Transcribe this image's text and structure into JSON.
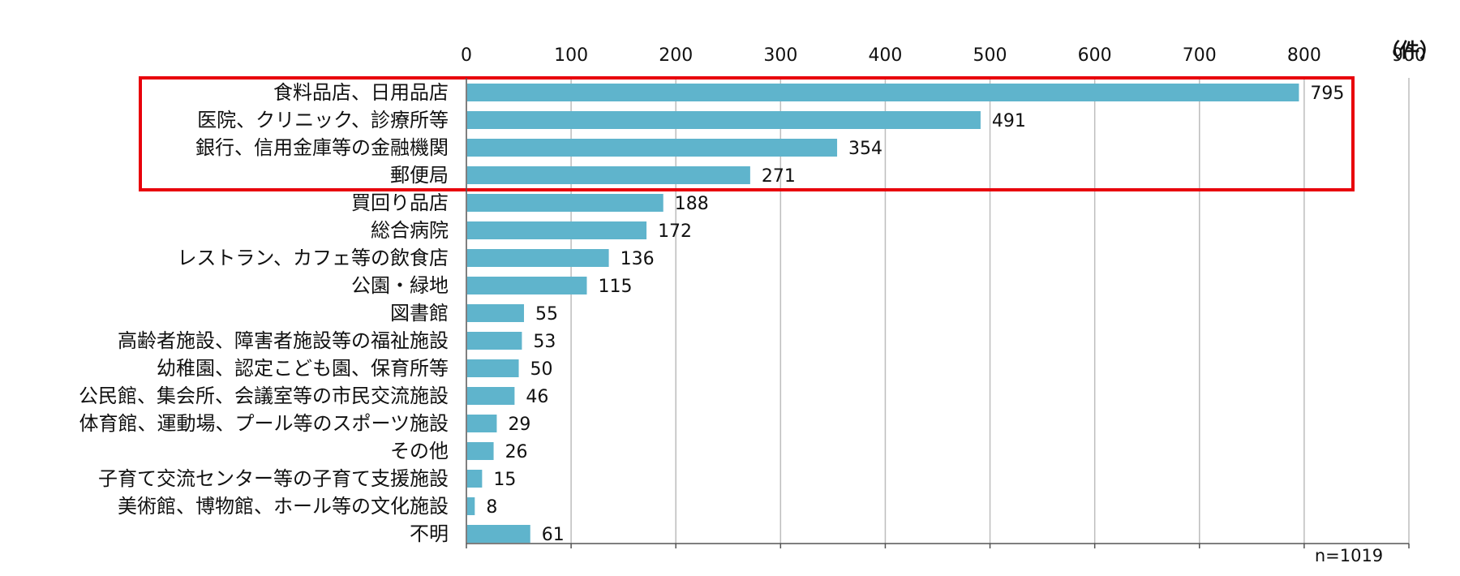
{
  "chart_data": {
    "type": "bar",
    "orientation": "horizontal",
    "unit_label": "（件）",
    "sample_note": "n=1019",
    "xlim": [
      0,
      900
    ],
    "x_ticks": [
      "0",
      "100",
      "200",
      "300",
      "400",
      "500",
      "600",
      "700",
      "800",
      "900"
    ],
    "grid": true,
    "categories": [
      "食料品店、日用品店",
      "医院、クリニック、診療所等",
      "銀行、信用金庫等の金融機関",
      "郵便局",
      "買回り品店",
      "総合病院",
      "レストラン、カフェ等の飲食店",
      "公園・緑地",
      "図書館",
      "高齢者施設、障害者施設等の福祉施設",
      "幼稚園、認定こども園、保育所等",
      "公民館、集会所、会議室等の市民交流施設",
      "体育館、運動場、プール等のスポーツ施設",
      "その他",
      "子育て交流センター等の子育て支援施設",
      "美術館、博物館、ホール等の文化施設",
      "不明"
    ],
    "values": [
      795,
      491,
      354,
      271,
      188,
      172,
      136,
      115,
      55,
      53,
      50,
      46,
      29,
      26,
      15,
      8,
      61
    ],
    "highlighted_categories": [
      "食料品店、日用品店",
      "医院、クリニック、診療所等",
      "銀行、信用金庫等の金融機関",
      "郵便局"
    ],
    "colors": {
      "bar": "#5fb4cc",
      "grid": "#bdbdbd",
      "axis": "#555555",
      "highlight_box": "#e8000b",
      "text": "#111111"
    }
  }
}
